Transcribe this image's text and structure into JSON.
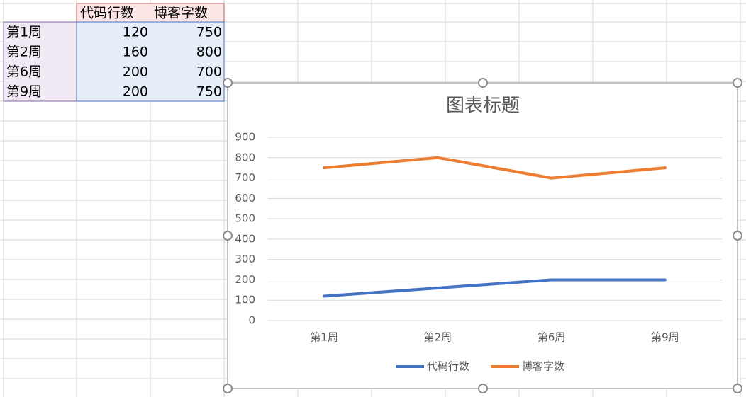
{
  "table": {
    "headers": [
      "代码行数",
      "博客字数"
    ],
    "rows": [
      [
        "第1周",
        120,
        750
      ],
      [
        "第2周",
        160,
        800
      ],
      [
        "第6周",
        200,
        700
      ],
      [
        "第9周",
        200,
        750
      ]
    ]
  },
  "chart_data": {
    "type": "line",
    "title": "图表标题",
    "categories": [
      "第1周",
      "第2周",
      "第6周",
      "第9周"
    ],
    "series": [
      {
        "name": "代码行数",
        "color": "#4472c4",
        "values": [
          120,
          160,
          200,
          200
        ]
      },
      {
        "name": "博客字数",
        "color": "#ed7d31",
        "values": [
          750,
          800,
          700,
          750
        ]
      }
    ],
    "ylim": [
      0,
      900
    ],
    "yticks": [
      0,
      100,
      200,
      300,
      400,
      500,
      600,
      700,
      800,
      900
    ],
    "grid": true,
    "legend": "bottom"
  }
}
